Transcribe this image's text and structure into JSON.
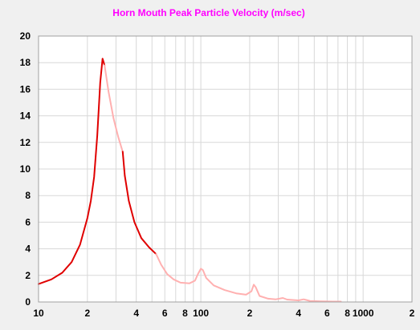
{
  "chart_data": {
    "type": "line",
    "title": "Horn Mouth Peak Particle Velocity (m/sec)",
    "xlabel": "",
    "ylabel": "",
    "x_scale": "log",
    "xlim": [
      10,
      2000
    ],
    "ylim": [
      0,
      20
    ],
    "y_ticks": [
      0,
      2,
      4,
      6,
      8,
      10,
      12,
      14,
      16,
      18,
      20
    ],
    "x_tick_labels": [
      {
        "value": 10,
        "label": "10"
      },
      {
        "value": 20,
        "label": "2"
      },
      {
        "value": 40,
        "label": "4"
      },
      {
        "value": 60,
        "label": "6"
      },
      {
        "value": 80,
        "label": "8"
      },
      {
        "value": 100,
        "label": "100"
      },
      {
        "value": 200,
        "label": "2"
      },
      {
        "value": 400,
        "label": "4"
      },
      {
        "value": 600,
        "label": "6"
      },
      {
        "value": 800,
        "label": "8"
      },
      {
        "value": 1000,
        "label": "1000"
      },
      {
        "value": 2000,
        "label": "2"
      }
    ],
    "grid": true,
    "colors": {
      "title": "#ff00ff",
      "segment_primary": "#e00000",
      "segment_secondary": "#ffb0b0",
      "grid": "#d8d8d8",
      "plot_background": "#ffffff",
      "frame": "#a0a0a0"
    },
    "segments": [
      {
        "style": "primary",
        "points": [
          [
            10,
            1.35
          ],
          [
            12,
            1.7
          ],
          [
            14,
            2.2
          ],
          [
            16,
            3.0
          ],
          [
            18,
            4.3
          ],
          [
            20,
            6.3
          ],
          [
            21,
            7.6
          ],
          [
            22,
            9.4
          ],
          [
            23,
            12.5
          ],
          [
            24,
            16.5
          ],
          [
            24.8,
            18.3
          ],
          [
            25.5,
            17.8
          ]
        ]
      },
      {
        "style": "secondary",
        "points": [
          [
            25.5,
            17.8
          ],
          [
            27,
            15.8
          ],
          [
            29,
            13.8
          ],
          [
            31,
            12.4
          ],
          [
            33,
            11.3
          ]
        ]
      },
      {
        "style": "primary",
        "points": [
          [
            33,
            11.3
          ],
          [
            34,
            9.5
          ],
          [
            36,
            7.6
          ],
          [
            39,
            6.0
          ],
          [
            43,
            4.8
          ],
          [
            48,
            4.1
          ],
          [
            53,
            3.6
          ]
        ]
      },
      {
        "style": "secondary",
        "points": [
          [
            53,
            3.6
          ],
          [
            57,
            2.8
          ],
          [
            62,
            2.1
          ],
          [
            68,
            1.7
          ],
          [
            75,
            1.45
          ],
          [
            85,
            1.4
          ],
          [
            92,
            1.6
          ],
          [
            96,
            2.1
          ],
          [
            100,
            2.5
          ],
          [
            103,
            2.4
          ],
          [
            108,
            1.8
          ],
          [
            120,
            1.25
          ],
          [
            140,
            0.9
          ],
          [
            165,
            0.65
          ],
          [
            190,
            0.55
          ],
          [
            205,
            0.8
          ],
          [
            212,
            1.3
          ],
          [
            218,
            1.1
          ],
          [
            230,
            0.45
          ],
          [
            260,
            0.25
          ],
          [
            290,
            0.2
          ],
          [
            320,
            0.3
          ],
          [
            340,
            0.18
          ],
          [
            400,
            0.12
          ],
          [
            430,
            0.2
          ],
          [
            470,
            0.08
          ],
          [
            550,
            0.05
          ],
          [
            650,
            0.03
          ],
          [
            730,
            0.03
          ]
        ]
      }
    ]
  }
}
